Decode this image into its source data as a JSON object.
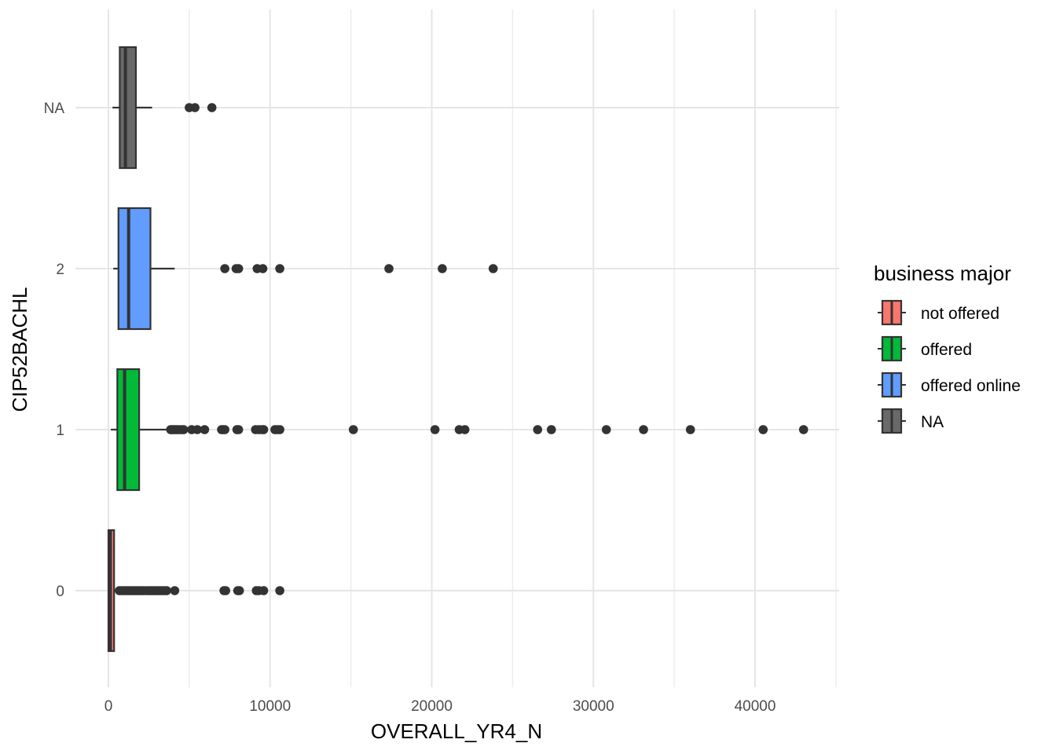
{
  "chart_data": {
    "type": "boxplot",
    "orientation": "horizontal",
    "xlabel": "OVERALL_YR4_N",
    "ylabel": "CIP52BACHL",
    "xlim": [
      -1000,
      45000
    ],
    "x_ticks": [
      0,
      10000,
      20000,
      30000,
      40000
    ],
    "x_tick_labels": [
      "0",
      "10000",
      "20000",
      "30000",
      "40000"
    ],
    "categories": [
      "0",
      "1",
      "2",
      "NA"
    ],
    "grid": true,
    "legend": {
      "title": "business major",
      "position": "right",
      "items": [
        "not offered",
        "offered",
        "offered online",
        "NA"
      ]
    },
    "series": [
      {
        "name": "not offered",
        "category": "0",
        "color": "#F8766D",
        "whisker_low": 0,
        "q1": 0,
        "median": 120,
        "q3": 350,
        "whisker_high": 600,
        "outliers": [
          680,
          850,
          1000,
          1150,
          1300,
          1450,
          1600,
          1750,
          1900,
          2050,
          2200,
          2400,
          2550,
          2700,
          2850,
          3000,
          3150,
          3300,
          3450,
          3600,
          4100,
          7150,
          7250,
          8000,
          8100,
          9150,
          9300,
          9600,
          10600
        ]
      },
      {
        "name": "offered",
        "category": "1",
        "color": "#00BA38",
        "whisker_low": 150,
        "q1": 550,
        "median": 1000,
        "q3": 1900,
        "whisker_high": 3700,
        "outliers": [
          3850,
          3950,
          4050,
          4150,
          4250,
          4400,
          4550,
          4650,
          5150,
          5500,
          5950,
          7000,
          7100,
          7200,
          7950,
          8050,
          9100,
          9300,
          9500,
          9600,
          10300,
          10450,
          10600,
          15150,
          20200,
          21700,
          22050,
          26550,
          27400,
          30800,
          33100,
          36000,
          40500,
          43000
        ]
      },
      {
        "name": "offered online",
        "category": "2",
        "color": "#619CFF",
        "whisker_low": 300,
        "q1": 620,
        "median": 1250,
        "q3": 2600,
        "whisker_high": 4100,
        "outliers": [
          7200,
          7900,
          8050,
          9200,
          9550,
          10600,
          17350,
          20650,
          23800
        ]
      },
      {
        "name": "NA",
        "category": "NA",
        "color": "#696969",
        "whisker_low": 250,
        "q1": 700,
        "median": 1050,
        "q3": 1700,
        "whisker_high": 2700,
        "outliers": [
          5000,
          5350,
          6400
        ]
      }
    ]
  }
}
